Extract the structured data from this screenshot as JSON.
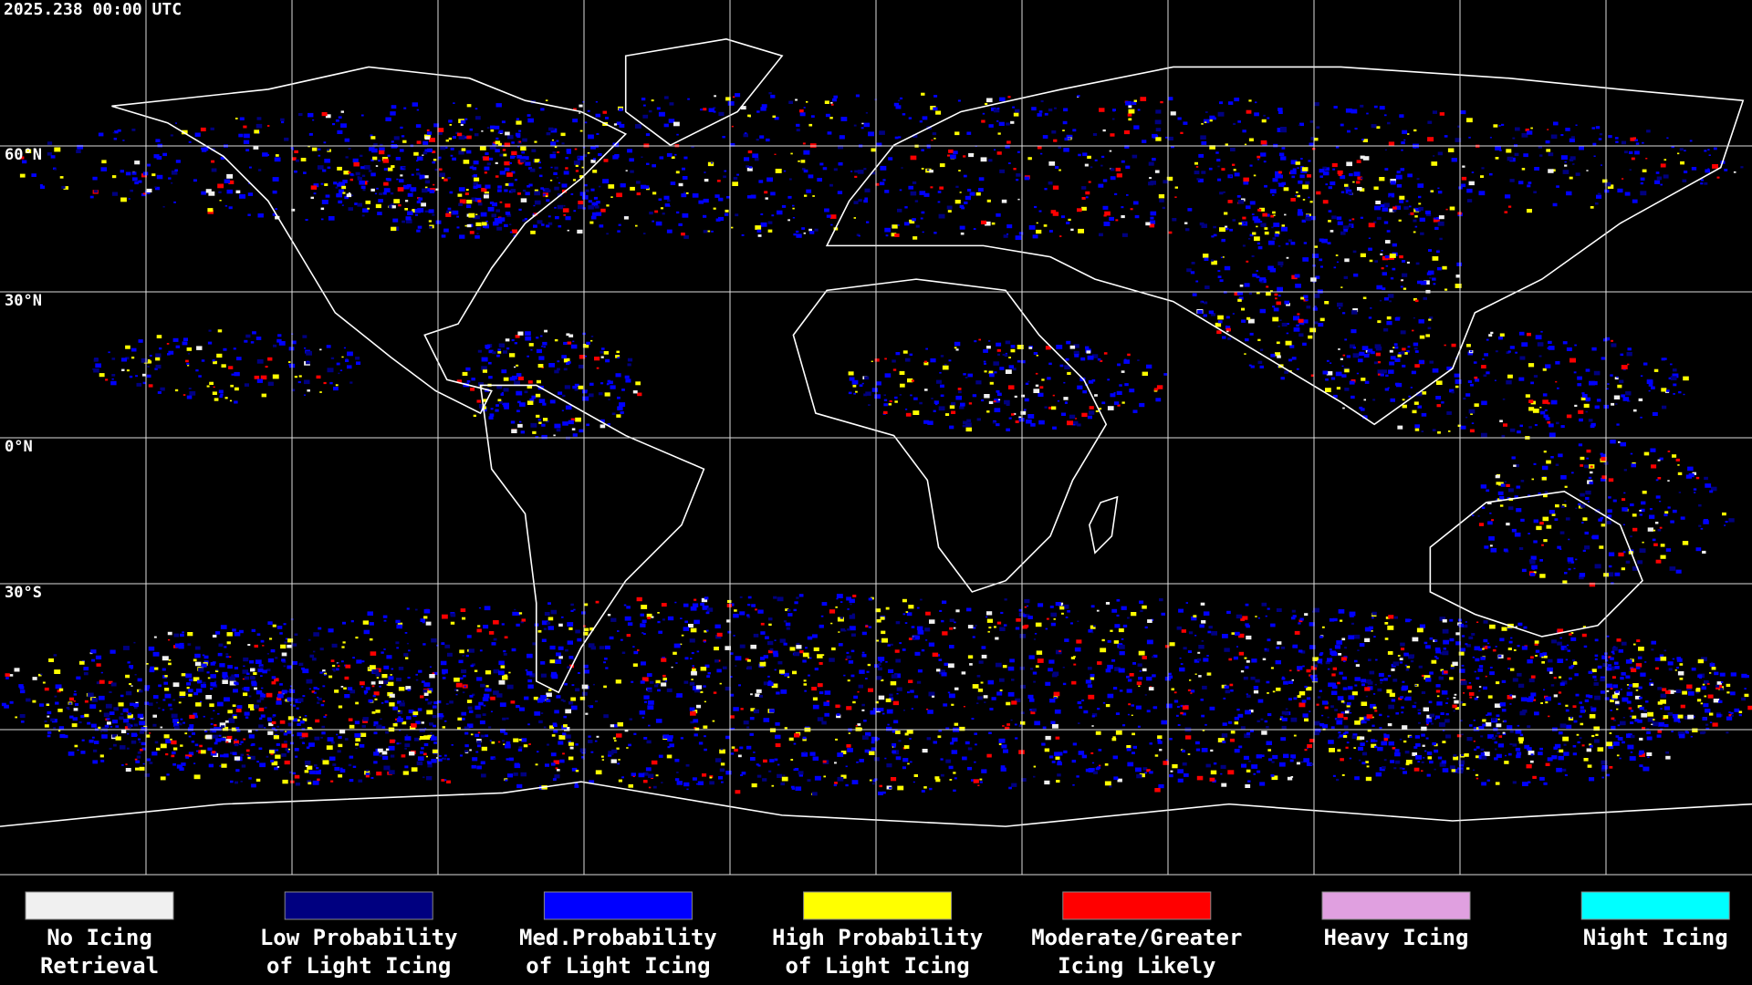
{
  "header": {
    "title": "2025.238 00:00 UTC"
  },
  "map": {
    "latitude_labels": [
      "60°N",
      "30°N",
      "0°N",
      "30°S"
    ]
  },
  "legend": {
    "items": [
      {
        "color": "#f0f0f0",
        "lines": [
          "No Icing",
          "Retrieval"
        ]
      },
      {
        "color": "#000080",
        "lines": [
          "Low Probability",
          "of Light Icing"
        ]
      },
      {
        "color": "#0000ff",
        "lines": [
          "Med.Probability",
          "of Light Icing"
        ]
      },
      {
        "color": "#ffff00",
        "lines": [
          "High Probability",
          "of Light Icing"
        ]
      },
      {
        "color": "#ff0000",
        "lines": [
          "Moderate/Greater",
          "Icing Likely"
        ]
      },
      {
        "color": "#e0a0e0",
        "lines": [
          "Heavy Icing"
        ]
      },
      {
        "color": "#00ffff",
        "lines": [
          "Night Icing"
        ]
      }
    ]
  }
}
